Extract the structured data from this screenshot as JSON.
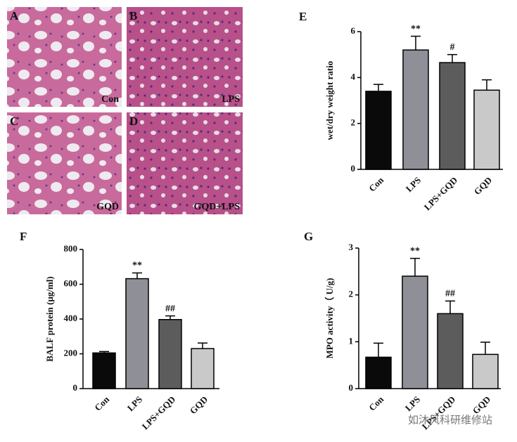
{
  "panels": [
    {
      "letter": "A",
      "label": "Con"
    },
    {
      "letter": "B",
      "label": "LPS"
    },
    {
      "letter": "C",
      "label": "GQD"
    },
    {
      "letter": "D",
      "label": "GQD+LPS"
    }
  ],
  "chart_data": [
    {
      "type": "bar",
      "panel": "E",
      "ylabel": "wet/dry weight ratio",
      "categories": [
        "Con",
        "LPS",
        "LPS+GQD",
        "GQD"
      ],
      "values": [
        3.4,
        5.2,
        4.65,
        3.45
      ],
      "errors": [
        0.3,
        0.6,
        0.35,
        0.45
      ],
      "annotations": [
        null,
        "**",
        "#",
        null
      ],
      "colors": [
        "#0a0a0a",
        "#8f8f97",
        "#5c5c5c",
        "#c9c9c9"
      ],
      "ylim": [
        0,
        6
      ],
      "yticks": [
        0,
        2,
        4,
        6
      ]
    },
    {
      "type": "bar",
      "panel": "F",
      "ylabel": "BALF protein (μg/ml)",
      "categories": [
        "Con",
        "LPS",
        "LPS+GQD",
        "GQD"
      ],
      "values": [
        205,
        632,
        397,
        230
      ],
      "errors": [
        8,
        33,
        21,
        32
      ],
      "annotations": [
        null,
        "**",
        "##",
        null
      ],
      "colors": [
        "#0a0a0a",
        "#8f8f97",
        "#5c5c5c",
        "#c9c9c9"
      ],
      "ylim": [
        0,
        800
      ],
      "yticks": [
        0,
        200,
        400,
        600,
        800
      ]
    },
    {
      "type": "bar",
      "panel": "G",
      "ylabel": "MPO activity（ U/g)",
      "categories": [
        "Con",
        "LPS",
        "LPS+GQD",
        "GQD"
      ],
      "values": [
        0.67,
        2.4,
        1.6,
        0.73
      ],
      "errors": [
        0.3,
        0.38,
        0.27,
        0.26
      ],
      "annotations": [
        null,
        "**",
        "##",
        null
      ],
      "colors": [
        "#0a0a0a",
        "#8f8f97",
        "#5c5c5c",
        "#c9c9c9"
      ],
      "ylim": [
        0,
        3
      ],
      "yticks": [
        0,
        1,
        2,
        3
      ]
    }
  ],
  "watermark": "如沐风科研维修站"
}
